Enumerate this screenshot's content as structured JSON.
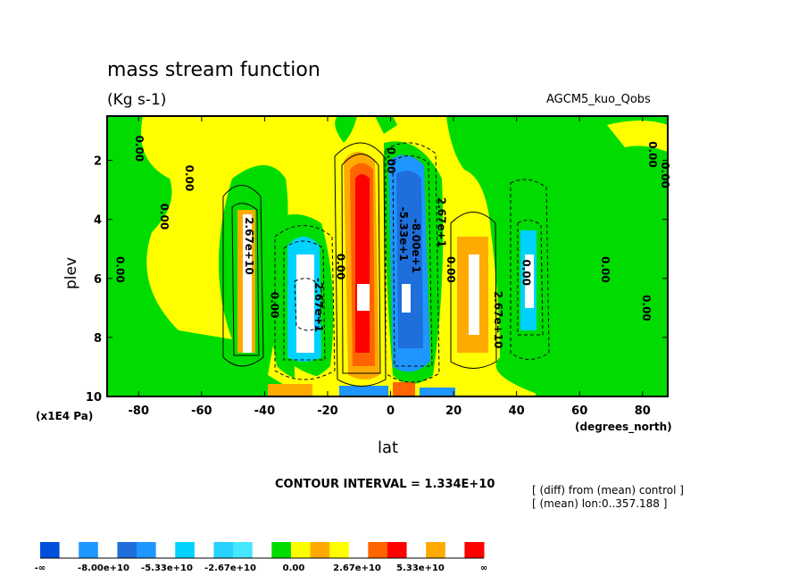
{
  "header": {
    "title": "mass stream function",
    "units": "(Kg s-1)",
    "model": "AGCM5_kuo_Qobs"
  },
  "axes": {
    "ylabel": "plev",
    "yunit": "(x1E4 Pa)",
    "xlabel": "lat",
    "xunit": "(degrees_north)"
  },
  "footer": {
    "contour_interval": "CONTOUR INTERVAL = 1.334E+10",
    "note1": "[ (diff) from (mean) control ]",
    "note2": "[ (mean) lon:0..357.188 ]"
  },
  "chart_data": {
    "type": "contour",
    "title": "mass stream function",
    "subtitle": "(Kg s-1)",
    "xlabel": "lat",
    "ylabel": "plev",
    "xlim": [
      -90,
      88
    ],
    "ylim": [
      10,
      0.5
    ],
    "x_ticks": [
      "-80",
      "-60",
      "-40",
      "-20",
      "0",
      "20",
      "40",
      "60",
      "80"
    ],
    "x_tick_values": [
      -80,
      -60,
      -40,
      -20,
      0,
      20,
      40,
      60,
      80
    ],
    "y_ticks": [
      "2",
      "4",
      "6",
      "8",
      "10"
    ],
    "y_tick_values": [
      2,
      4,
      6,
      8,
      10
    ],
    "contour_interval": 13340000000.0,
    "contour_labels": [
      {
        "text": "0.00",
        "lat": -81,
        "plev": 1.6
      },
      {
        "text": "0.00",
        "lat": -65,
        "plev": 2.6
      },
      {
        "text": "0.00",
        "lat": -73,
        "plev": 3.9
      },
      {
        "text": "0.00",
        "lat": -87,
        "plev": 5.7
      },
      {
        "text": "2.67e+10",
        "lat": -46,
        "plev": 4.9
      },
      {
        "text": "0.00",
        "lat": -38,
        "plev": 6.9
      },
      {
        "text": "0.00",
        "lat": -17,
        "plev": 5.6
      },
      {
        "text": "-2.67e+1",
        "lat": -24,
        "plev": 6.9
      },
      {
        "text": "0.00",
        "lat": -1,
        "plev": 2.0
      },
      {
        "text": "-5.33e+1",
        "lat": 3,
        "plev": 4.5
      },
      {
        "text": "-8.00e+1",
        "lat": 7,
        "plev": 4.9
      },
      {
        "text": "2.67e+1",
        "lat": 15,
        "plev": 4.1
      },
      {
        "text": "0.00",
        "lat": 18,
        "plev": 5.7
      },
      {
        "text": "2.67e+10",
        "lat": 33,
        "plev": 7.4
      },
      {
        "text": "0.00",
        "lat": 42,
        "plev": 5.8
      },
      {
        "text": "0.00",
        "lat": 67,
        "plev": 5.7
      },
      {
        "text": "0.00",
        "lat": 80,
        "plev": 7.0
      },
      {
        "text": "0.00",
        "lat": 82,
        "plev": 1.8
      },
      {
        "text": "0.00",
        "lat": 86,
        "plev": 2.5
      }
    ],
    "colorbar": {
      "labels": [
        "-∞",
        "-8.00e+10",
        "-5.33e+10",
        "-2.67e+10",
        "0.00",
        "2.67e+10",
        "5.33e+10",
        "∞"
      ],
      "colors": [
        "#0050dc",
        "#ffffff",
        "#1e96ff",
        "#ffffff",
        "#1e6edc",
        "#1e96ff",
        "#ffffff",
        "#00d2ff",
        "#ffffff",
        "#28d2ff",
        "#46e6ff",
        "#ffffff",
        "#00dc00",
        "#ffff00",
        "#ffaa00",
        "#ffff00",
        "#ffffff",
        "#ff6400",
        "#ff0000",
        "#ffffff",
        "#ffaa00",
        "#ffffff",
        "#ff0000"
      ]
    }
  }
}
